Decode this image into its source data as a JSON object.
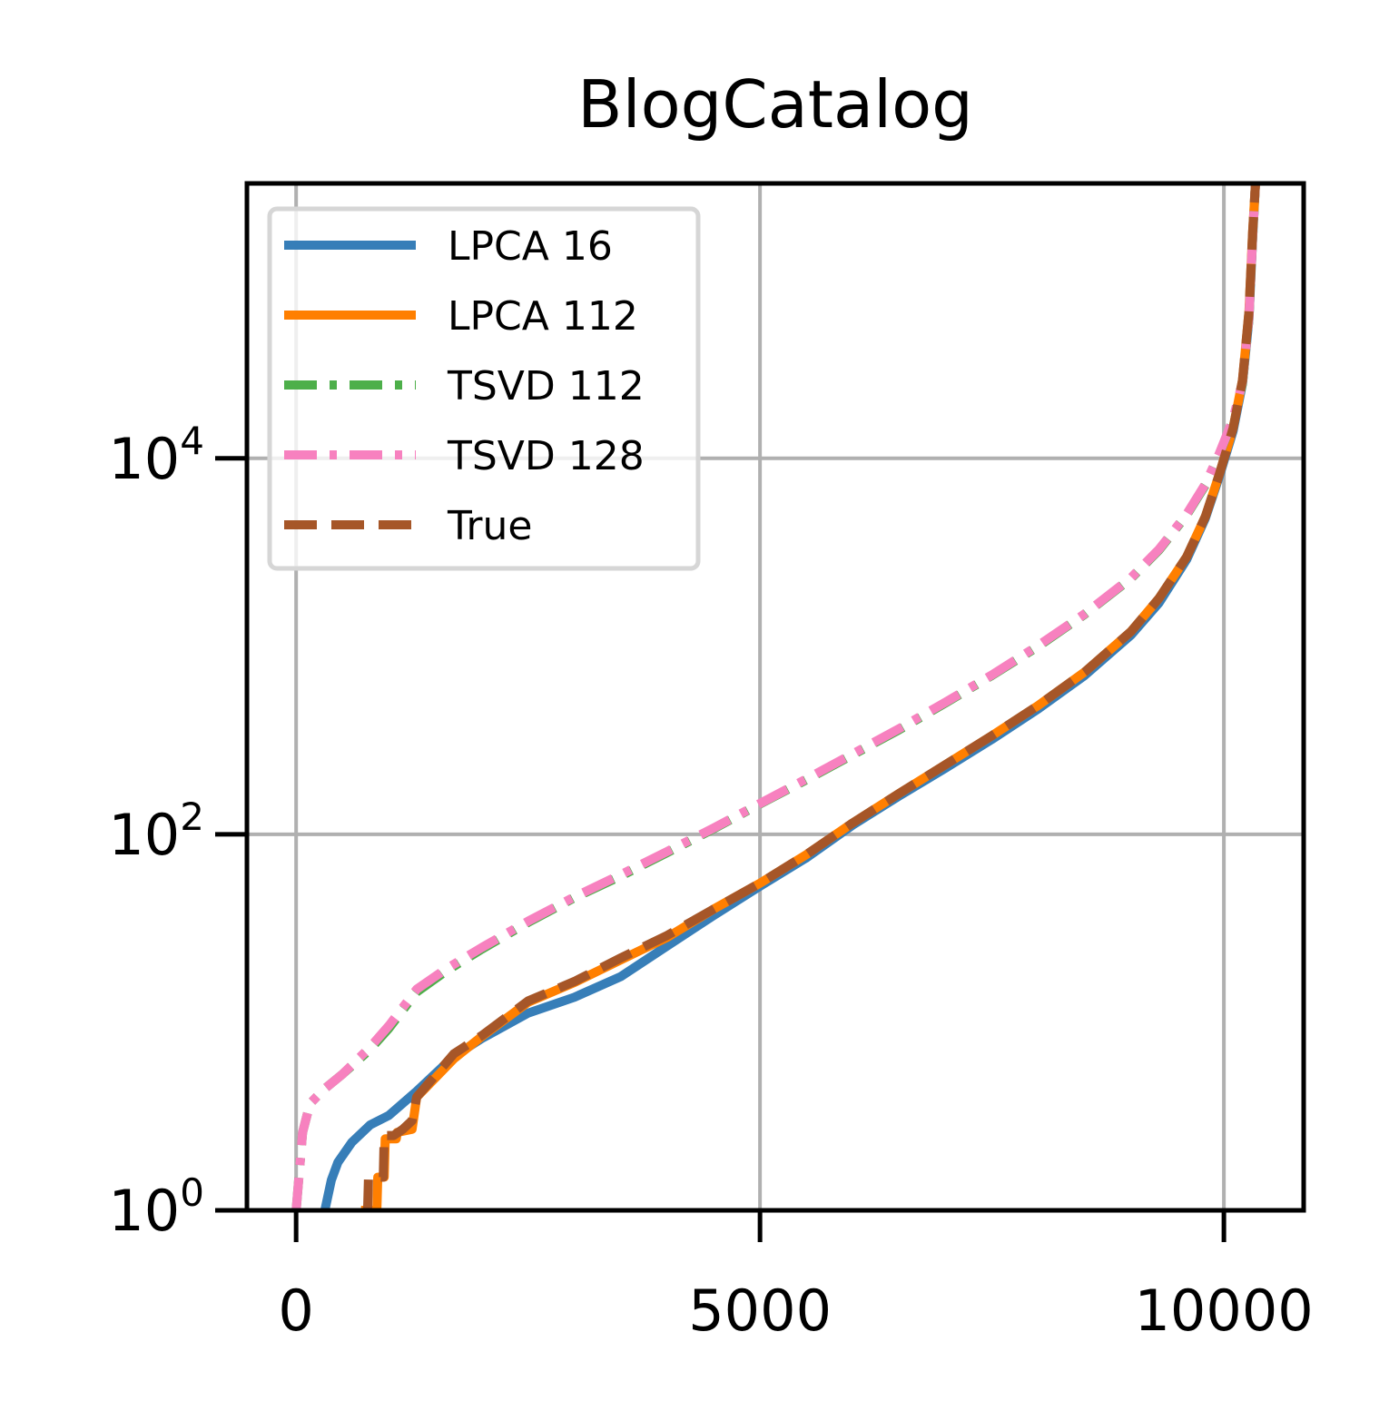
{
  "chart_data": {
    "type": "line",
    "title": "BlogCatalog",
    "xlabel": "",
    "ylabel": "",
    "y_scale": "log",
    "grid": true,
    "legend_position": "top-left",
    "xlim": [
      -530,
      10860
    ],
    "ylim": [
      1,
      290000
    ],
    "x_ticks": [
      {
        "value": 0,
        "label": "0"
      },
      {
        "value": 5000,
        "label": "5000"
      },
      {
        "value": 10000,
        "label": "10000"
      }
    ],
    "y_ticks": [
      {
        "value": 1,
        "base": "10",
        "exp": "0"
      },
      {
        "value": 100,
        "base": "10",
        "exp": "2"
      },
      {
        "value": 10000,
        "base": "10",
        "exp": "4"
      }
    ],
    "series": [
      {
        "name": "LPCA 16",
        "color": "#377eb8",
        "dash": "solid",
        "points": [
          [
            310,
            1
          ],
          [
            380,
            1.45
          ],
          [
            450,
            1.8
          ],
          [
            600,
            2.3
          ],
          [
            800,
            2.85
          ],
          [
            1000,
            3.2
          ],
          [
            1300,
            4.3
          ],
          [
            1700,
            6.6
          ],
          [
            2000,
            8.2
          ],
          [
            2500,
            11.2
          ],
          [
            3000,
            13.6
          ],
          [
            3500,
            17.5
          ],
          [
            4000,
            25.5
          ],
          [
            4500,
            37
          ],
          [
            5000,
            53
          ],
          [
            5500,
            75
          ],
          [
            6000,
            112
          ],
          [
            6500,
            160
          ],
          [
            7000,
            225
          ],
          [
            7500,
            320
          ],
          [
            8000,
            465
          ],
          [
            8500,
            700
          ],
          [
            9000,
            1150
          ],
          [
            9300,
            1700
          ],
          [
            9600,
            2900
          ],
          [
            9800,
            4800
          ],
          [
            9950,
            8000
          ],
          [
            10100,
            14000
          ],
          [
            10200,
            25000
          ],
          [
            10270,
            55000
          ],
          [
            10310,
            150000
          ],
          [
            10340,
            290000
          ]
        ]
      },
      {
        "name": "LPCA 112",
        "color": "#ff7f00",
        "dash": "solid",
        "points": [
          [
            700,
            1
          ],
          [
            870,
            1
          ],
          [
            880,
            1.5
          ],
          [
            950,
            1.5
          ],
          [
            960,
            2.4
          ],
          [
            1080,
            2.4
          ],
          [
            1090,
            2.6
          ],
          [
            1250,
            2.7
          ],
          [
            1300,
            4
          ],
          [
            1700,
            6.4
          ],
          [
            2000,
            8.4
          ],
          [
            2500,
            12.8
          ],
          [
            3000,
            16.3
          ],
          [
            3500,
            21.5
          ],
          [
            4000,
            28.3
          ],
          [
            4500,
            40
          ],
          [
            5000,
            55
          ],
          [
            5500,
            78
          ],
          [
            6000,
            115
          ],
          [
            6500,
            165
          ],
          [
            7000,
            235
          ],
          [
            7500,
            335
          ],
          [
            8000,
            485
          ],
          [
            8500,
            730
          ],
          [
            9000,
            1200
          ],
          [
            9300,
            1800
          ],
          [
            9600,
            3000
          ],
          [
            9800,
            4900
          ],
          [
            9950,
            8200
          ],
          [
            10100,
            14500
          ],
          [
            10200,
            26000
          ],
          [
            10270,
            60000
          ],
          [
            10310,
            160000
          ],
          [
            10340,
            290000
          ]
        ]
      },
      {
        "name": "TSVD 112",
        "color": "#4daf4a",
        "dash": "dashdot",
        "points": [
          [
            0,
            1
          ],
          [
            70,
            2.6
          ],
          [
            150,
            3.7
          ],
          [
            300,
            4.4
          ],
          [
            500,
            5.3
          ],
          [
            800,
            7.2
          ],
          [
            1000,
            9.3
          ],
          [
            1300,
            14.5
          ],
          [
            1600,
            18.5
          ],
          [
            2000,
            24.5
          ],
          [
            2500,
            34
          ],
          [
            3000,
            46
          ],
          [
            3500,
            60
          ],
          [
            4000,
            80
          ],
          [
            4500,
            107
          ],
          [
            5000,
            145
          ],
          [
            5500,
            195
          ],
          [
            6000,
            265
          ],
          [
            6500,
            360
          ],
          [
            7000,
            500
          ],
          [
            7500,
            700
          ],
          [
            8000,
            1000
          ],
          [
            8500,
            1480
          ],
          [
            9000,
            2300
          ],
          [
            9300,
            3250
          ],
          [
            9600,
            5000
          ],
          [
            9800,
            7200
          ],
          [
            9950,
            10500
          ],
          [
            10100,
            16000
          ],
          [
            10200,
            25000
          ],
          [
            10270,
            55000
          ],
          [
            10310,
            150000
          ],
          [
            10340,
            290000
          ]
        ]
      },
      {
        "name": "TSVD 128",
        "color": "#f781bf",
        "dash": "dashdot",
        "points": [
          [
            0,
            1
          ],
          [
            70,
            2.6
          ],
          [
            150,
            3.7
          ],
          [
            300,
            4.4
          ],
          [
            500,
            5.3
          ],
          [
            800,
            7.4
          ],
          [
            1000,
            9.6
          ],
          [
            1300,
            15
          ],
          [
            1600,
            19
          ],
          [
            2000,
            25
          ],
          [
            2500,
            34.5
          ],
          [
            3000,
            46.5
          ],
          [
            3500,
            61
          ],
          [
            4000,
            81
          ],
          [
            4500,
            108
          ],
          [
            5000,
            146
          ],
          [
            5500,
            197
          ],
          [
            6000,
            268
          ],
          [
            6500,
            365
          ],
          [
            7000,
            505
          ],
          [
            7500,
            705
          ],
          [
            8000,
            1010
          ],
          [
            8500,
            1490
          ],
          [
            9000,
            2320
          ],
          [
            9300,
            3280
          ],
          [
            9600,
            5050
          ],
          [
            9800,
            7300
          ],
          [
            9950,
            10600
          ],
          [
            10100,
            16200
          ],
          [
            10200,
            25500
          ],
          [
            10270,
            56000
          ],
          [
            10310,
            152000
          ],
          [
            10340,
            290000
          ]
        ]
      },
      {
        "name": "True",
        "color": "#a65628",
        "dash": "dashed",
        "points": [
          [
            750,
            1
          ],
          [
            770,
            1
          ],
          [
            780,
            1.5
          ],
          [
            940,
            1.5
          ],
          [
            950,
            2.5
          ],
          [
            1050,
            2.5
          ],
          [
            1150,
            2.7
          ],
          [
            1250,
            3
          ],
          [
            1300,
            4
          ],
          [
            1700,
            6.8
          ],
          [
            2000,
            8.5
          ],
          [
            2500,
            13
          ],
          [
            3000,
            16.5
          ],
          [
            3500,
            22
          ],
          [
            4000,
            29
          ],
          [
            4500,
            40
          ],
          [
            5000,
            55
          ],
          [
            5500,
            78
          ],
          [
            6000,
            115
          ],
          [
            6500,
            165
          ],
          [
            7000,
            235
          ],
          [
            7500,
            335
          ],
          [
            8000,
            485
          ],
          [
            8500,
            730
          ],
          [
            9000,
            1200
          ],
          [
            9300,
            1800
          ],
          [
            9600,
            3000
          ],
          [
            9800,
            4900
          ],
          [
            9950,
            8200
          ],
          [
            10100,
            14500
          ],
          [
            10200,
            26000
          ],
          [
            10270,
            60000
          ],
          [
            10310,
            160000
          ],
          [
            10340,
            290000
          ]
        ]
      }
    ]
  }
}
